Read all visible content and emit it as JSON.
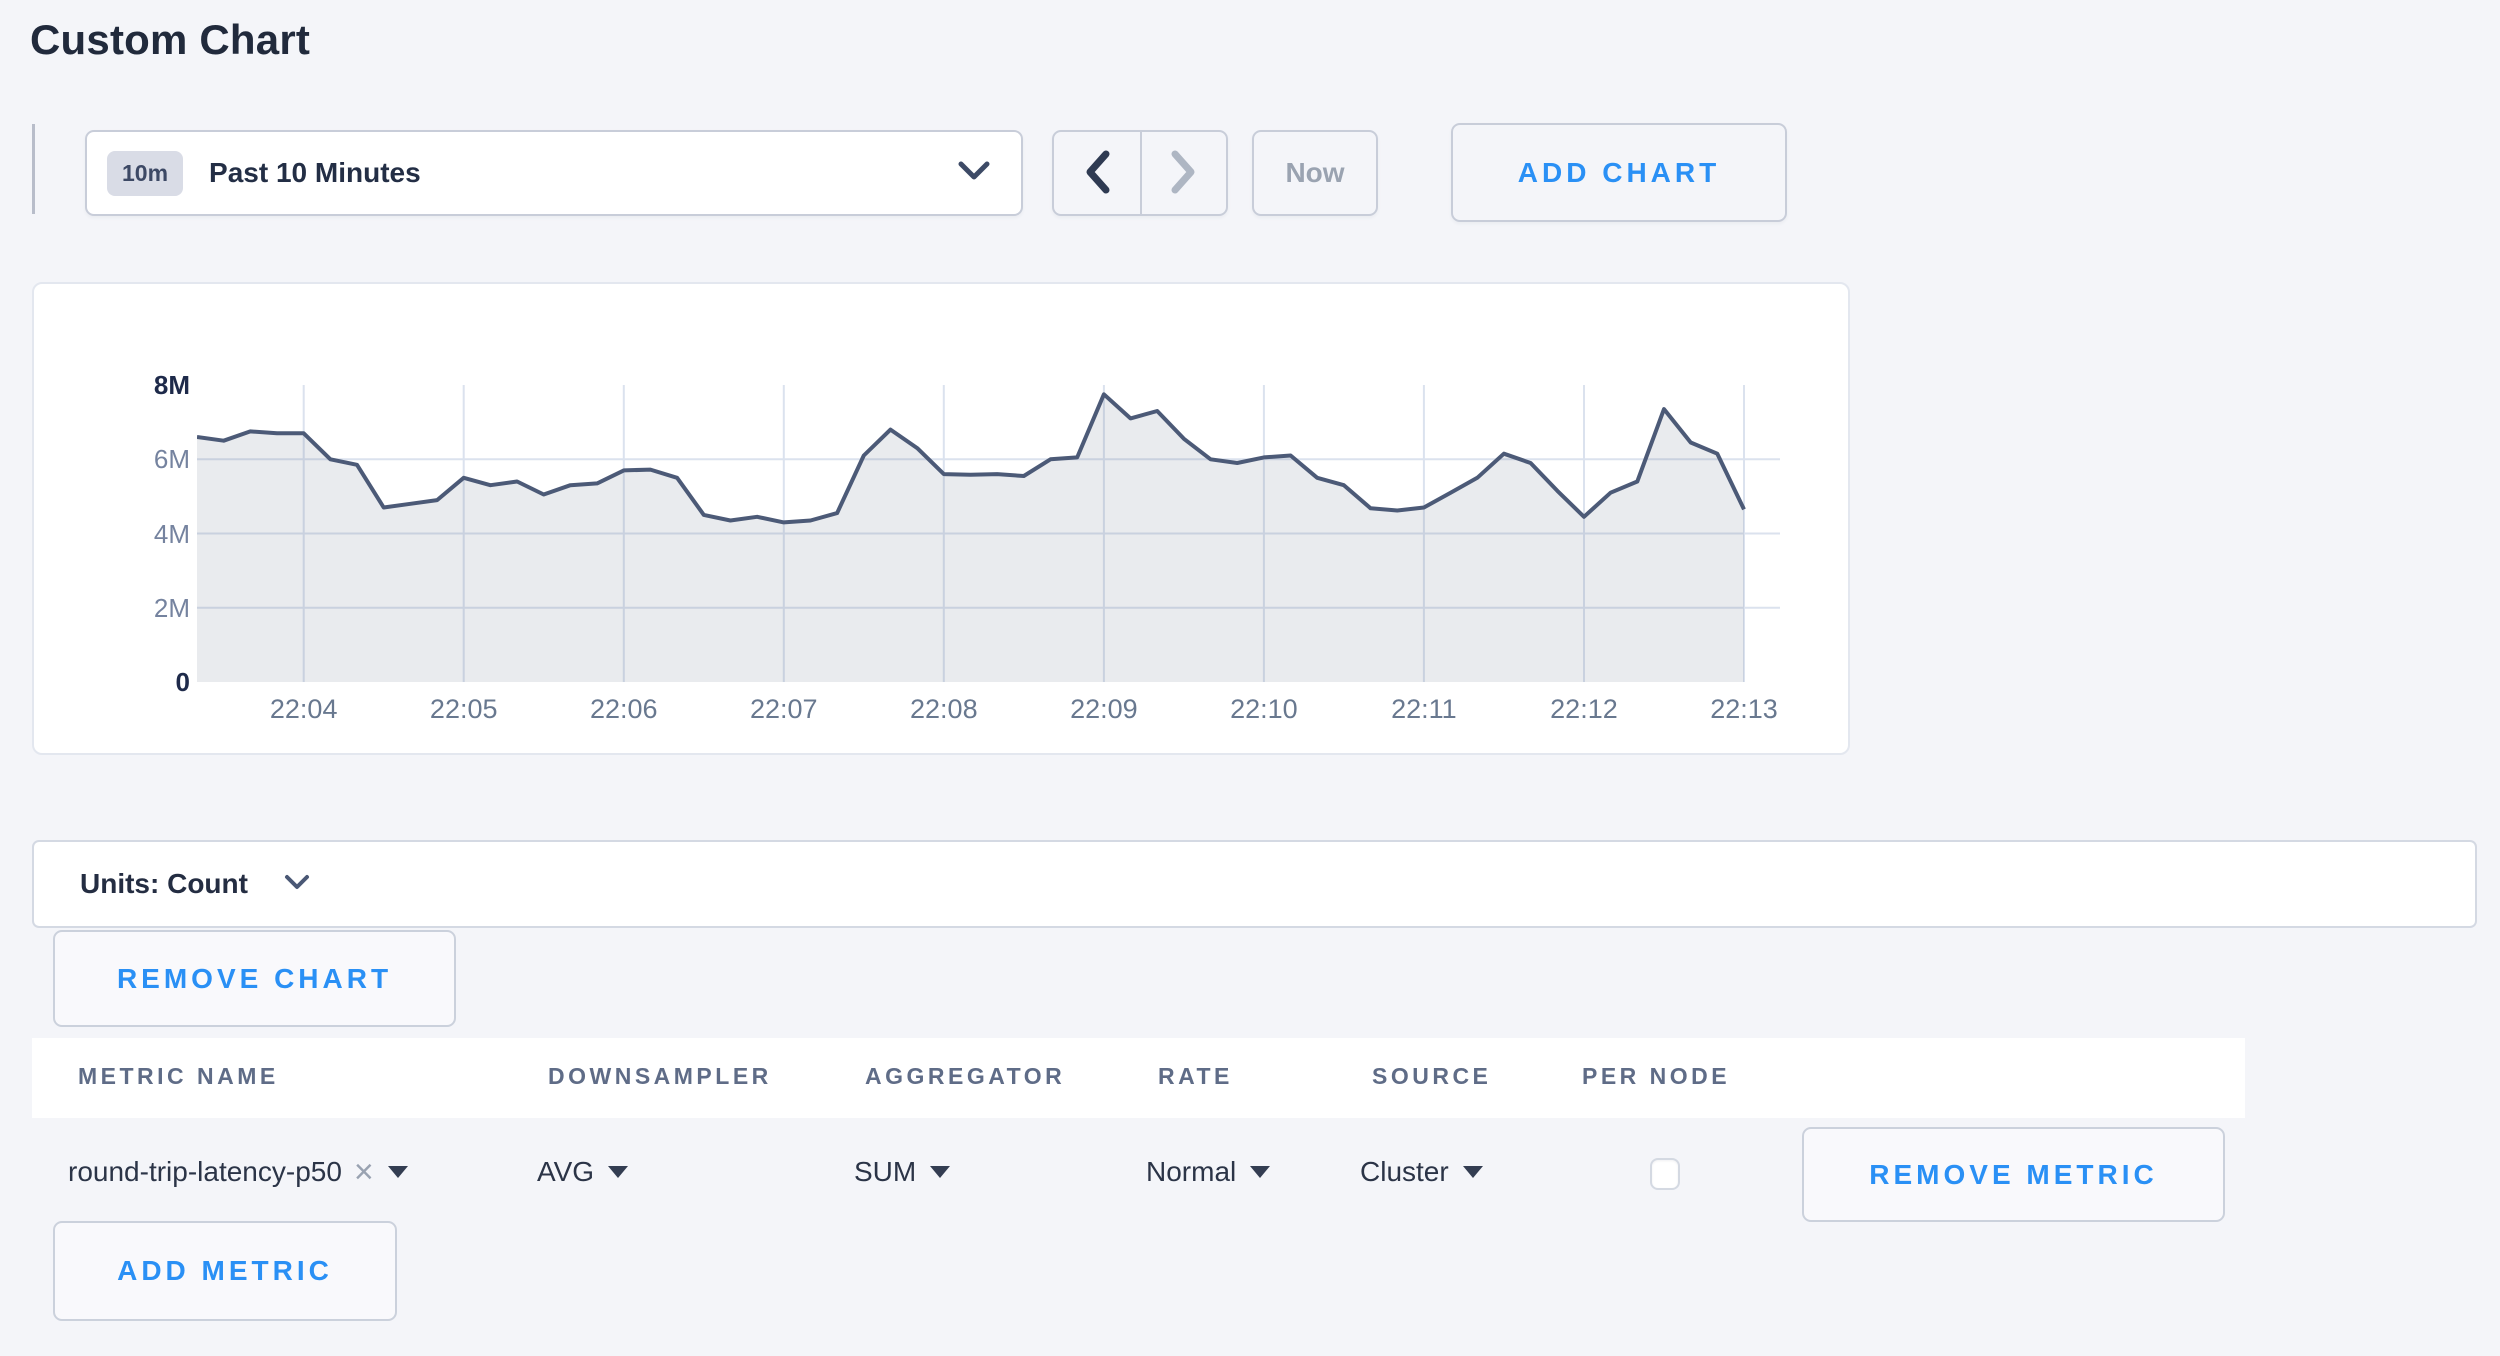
{
  "page": {
    "title": "Custom Chart",
    "background": "#f4f5f9",
    "accent_blue": "#2a90f5"
  },
  "toolbar": {
    "range_badge": "10m",
    "range_label": "Past 10 Minutes",
    "now_label": "Now",
    "add_chart_label": "ADD CHART"
  },
  "chart_data": {
    "type": "area",
    "title": "",
    "unit": "count",
    "legend": null,
    "grid": true,
    "x_start": "22:03:20",
    "x_interval_seconds": 10,
    "x_tick_labels": [
      "22:04",
      "22:05",
      "22:06",
      "22:07",
      "22:08",
      "22:09",
      "22:10",
      "22:11",
      "22:12",
      "22:13"
    ],
    "y_ticks": [
      0,
      2000000,
      4000000,
      6000000,
      8000000
    ],
    "y_tick_labels": [
      "0",
      "2M",
      "4M",
      "6M",
      "8M"
    ],
    "ylim": [
      0,
      8000000
    ],
    "line_color": "#4c5a77",
    "fill_color": "#4c5a77",
    "fill_opacity": 0.12,
    "grid_color": "#dbe2ee",
    "values": [
      6600000,
      6500000,
      6750000,
      6700000,
      6700000,
      6000000,
      5850000,
      4700000,
      4800000,
      4900000,
      5500000,
      5300000,
      5400000,
      5050000,
      5300000,
      5350000,
      5700000,
      5720000,
      5500000,
      4500000,
      4350000,
      4450000,
      4300000,
      4350000,
      4550000,
      6100000,
      6800000,
      6300000,
      5600000,
      5580000,
      5600000,
      5550000,
      6000000,
      6050000,
      7750000,
      7100000,
      7300000,
      6550000,
      6000000,
      5900000,
      6050000,
      6100000,
      5500000,
      5300000,
      4680000,
      4620000,
      4700000,
      5100000,
      5500000,
      6150000,
      5900000,
      5150000,
      4450000,
      5100000,
      5400000,
      7350000,
      6450000,
      6150000,
      4650000
    ]
  },
  "units_bar": {
    "label": "Units: Count"
  },
  "buttons": {
    "remove_chart": "REMOVE CHART",
    "remove_metric": "REMOVE METRIC",
    "add_metric": "ADD METRIC"
  },
  "metrics_table": {
    "columns": [
      "METRIC NAME",
      "DOWNSAMPLER",
      "AGGREGATOR",
      "RATE",
      "SOURCE",
      "PER NODE"
    ],
    "rows": [
      {
        "metric_name": "round-trip-latency-p50",
        "downsampler": "AVG",
        "aggregator": "SUM",
        "rate": "Normal",
        "source": "Cluster",
        "per_node_checked": false
      }
    ]
  }
}
